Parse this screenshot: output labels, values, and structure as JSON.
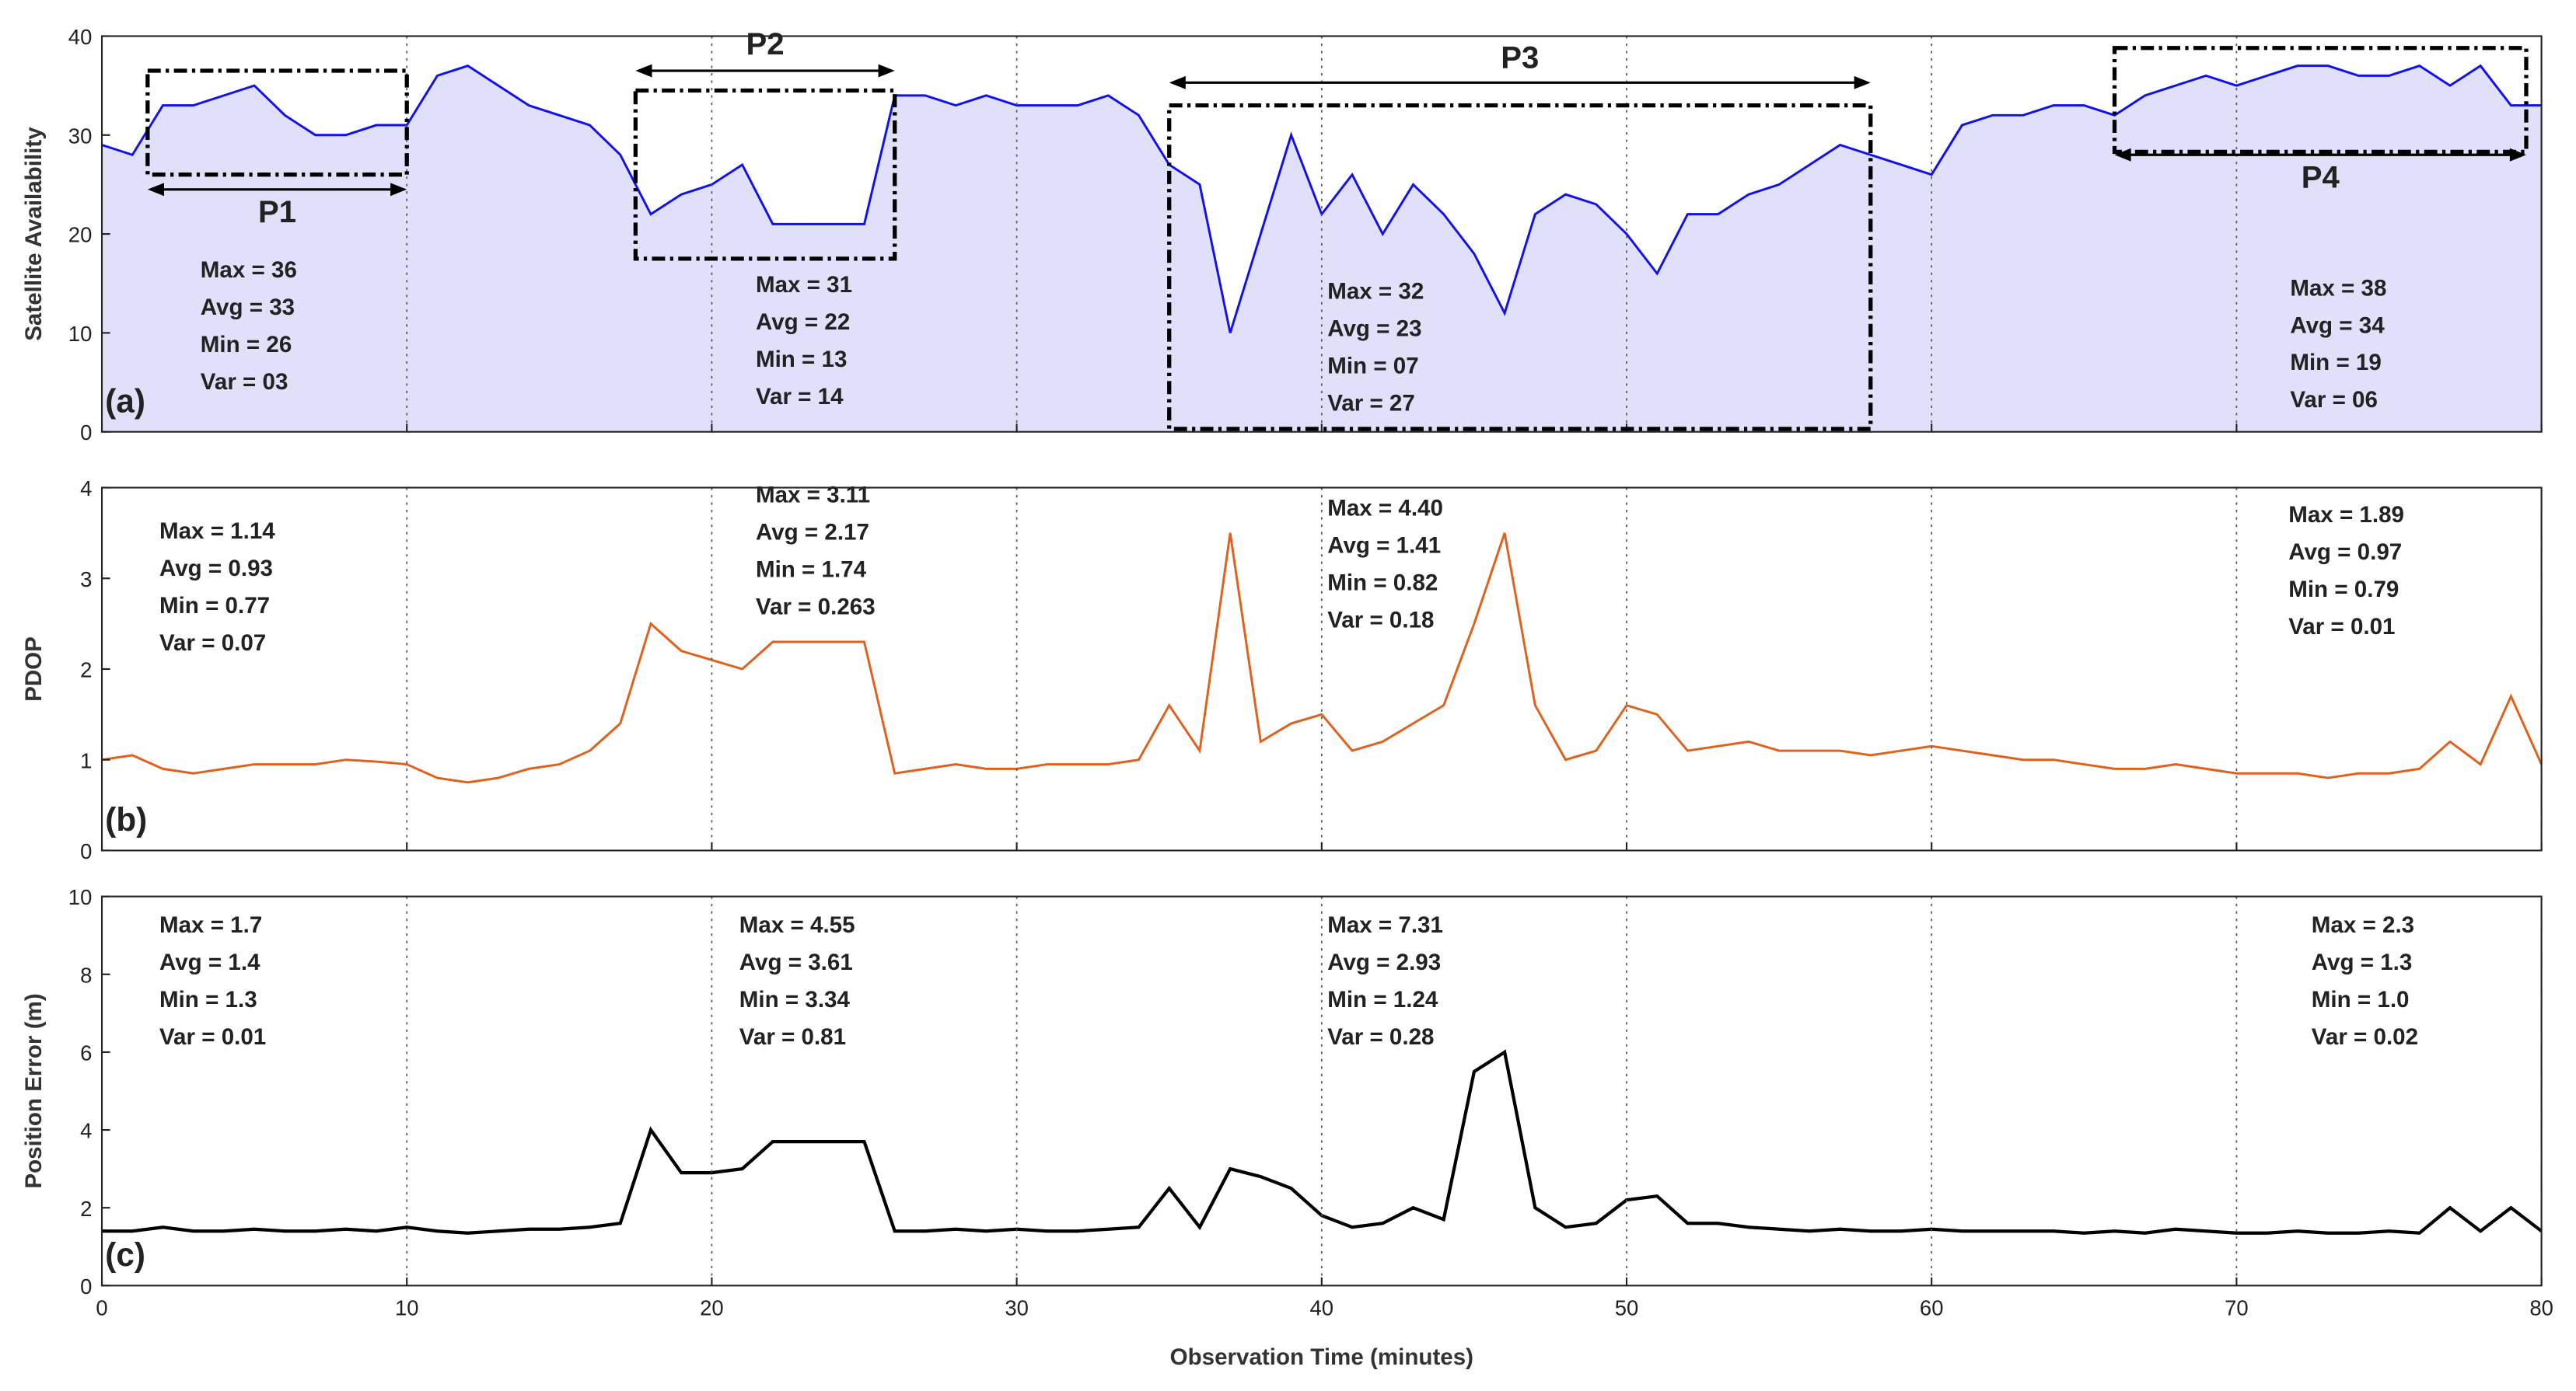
{
  "chart_data": [
    {
      "type": "area",
      "ylabel": "Satellite Availability",
      "panel": "(a)",
      "x": [
        0,
        1,
        2,
        3,
        4,
        5,
        6,
        7,
        8,
        9,
        10,
        11,
        12,
        13,
        14,
        15,
        16,
        17,
        18,
        19,
        20,
        21,
        22,
        23,
        24,
        25,
        26,
        27,
        28,
        29,
        30,
        31,
        32,
        33,
        34,
        35,
        36,
        37,
        38,
        39,
        40,
        41,
        42,
        43,
        44,
        45,
        46,
        47,
        48,
        49,
        50,
        51,
        52,
        53,
        54,
        55,
        56,
        57,
        58,
        59,
        60,
        61,
        62,
        63,
        64,
        65,
        66,
        67,
        68,
        69,
        70,
        71,
        72,
        73,
        74,
        75,
        76,
        77,
        78,
        79,
        80
      ],
      "series": [
        {
          "color": "#1010f0",
          "fill": "#e0e0fa",
          "values": [
            29,
            28,
            33,
            33,
            34,
            35,
            32,
            30,
            30,
            31,
            31,
            36,
            37,
            35,
            33,
            32,
            31,
            28,
            22,
            24,
            25,
            27,
            21,
            21,
            21,
            21,
            34,
            34,
            33,
            34,
            33,
            33,
            33,
            34,
            32,
            27,
            25,
            10,
            20,
            30,
            22,
            26,
            20,
            25,
            22,
            18,
            12,
            22,
            24,
            23,
            20,
            16,
            22,
            22,
            24,
            25,
            27,
            29,
            28,
            27,
            26,
            31,
            32,
            32,
            33,
            33,
            32,
            34,
            35,
            36,
            35,
            36,
            37,
            37,
            36,
            36,
            37,
            35,
            37,
            33,
            33
          ]
        }
      ],
      "xlim": [
        0,
        80
      ],
      "xticks": [
        0,
        10,
        20,
        30,
        40,
        50,
        60,
        70,
        80
      ],
      "ylim": [
        0,
        40
      ],
      "yticks": [
        0,
        10,
        20,
        30,
        40
      ],
      "grid": "x",
      "regions": [
        {
          "label": "P1",
          "x": [
            1.5,
            10
          ]
        },
        {
          "label": "P2",
          "x": [
            17.5,
            26
          ]
        },
        {
          "label": "P3",
          "x": [
            35,
            58
          ]
        },
        {
          "label": "P4",
          "x": [
            66,
            79.5
          ]
        }
      ],
      "stats": [
        [
          "Max = 36",
          "Avg = 33",
          "Min = 26",
          "Var = 03"
        ],
        [
          "Max = 31",
          "Avg = 22",
          "Min = 13",
          "Var = 14"
        ],
        [
          "Max = 32",
          "Avg = 23",
          "Min = 07",
          "Var = 27"
        ],
        [
          "Max = 38",
          "Avg = 34",
          "Min = 19",
          "Var = 06"
        ]
      ]
    },
    {
      "type": "line",
      "ylabel": "PDOP",
      "panel": "(b)",
      "x": [
        0,
        1,
        2,
        3,
        4,
        5,
        6,
        7,
        8,
        9,
        10,
        11,
        12,
        13,
        14,
        15,
        16,
        17,
        18,
        19,
        20,
        21,
        22,
        23,
        24,
        25,
        26,
        27,
        28,
        29,
        30,
        31,
        32,
        33,
        34,
        35,
        36,
        37,
        38,
        39,
        40,
        41,
        42,
        43,
        44,
        45,
        46,
        47,
        48,
        49,
        50,
        51,
        52,
        53,
        54,
        55,
        56,
        57,
        58,
        59,
        60,
        61,
        62,
        63,
        64,
        65,
        66,
        67,
        68,
        69,
        70,
        71,
        72,
        73,
        74,
        75,
        76,
        77,
        78,
        79,
        80
      ],
      "series": [
        {
          "color": "#e0601c",
          "values": [
            1.0,
            1.05,
            0.9,
            0.85,
            0.9,
            0.95,
            0.95,
            0.95,
            1.0,
            0.98,
            0.95,
            0.8,
            0.75,
            0.8,
            0.9,
            0.95,
            1.1,
            1.4,
            2.5,
            2.2,
            2.1,
            2.0,
            2.3,
            2.3,
            2.3,
            2.3,
            0.85,
            0.9,
            0.95,
            0.9,
            0.9,
            0.95,
            0.95,
            0.95,
            1.0,
            1.6,
            1.1,
            3.5,
            1.2,
            1.4,
            1.5,
            1.1,
            1.2,
            1.4,
            1.6,
            2.5,
            3.5,
            1.6,
            1.0,
            1.1,
            1.6,
            1.5,
            1.1,
            1.15,
            1.2,
            1.1,
            1.1,
            1.1,
            1.05,
            1.1,
            1.15,
            1.1,
            1.05,
            1.0,
            1.0,
            0.95,
            0.9,
            0.9,
            0.95,
            0.9,
            0.85,
            0.85,
            0.85,
            0.8,
            0.85,
            0.85,
            0.9,
            1.2,
            0.95,
            1.7,
            0.95
          ]
        }
      ],
      "xlim": [
        0,
        80
      ],
      "xticks": [
        0,
        10,
        20,
        30,
        40,
        50,
        60,
        70,
        80
      ],
      "ylim": [
        0,
        4
      ],
      "yticks": [
        0,
        1,
        2,
        3,
        4
      ],
      "grid": "x",
      "stats": [
        [
          "Max = 1.14",
          "Avg = 0.93",
          "Min = 0.77",
          "Var = 0.07"
        ],
        [
          "Max = 3.11",
          "Avg = 2.17",
          "Min = 1.74",
          "Var = 0.263"
        ],
        [
          "Max = 4.40",
          "Avg = 1.41",
          "Min = 0.82",
          "Var = 0.18"
        ],
        [
          "Max = 1.89",
          "Avg = 0.97",
          "Min = 0.79",
          "Var = 0.01"
        ]
      ]
    },
    {
      "type": "line",
      "ylabel": "Position Error (m)",
      "panel": "(c)",
      "xlabel": "Observation Time (minutes)",
      "x": [
        0,
        1,
        2,
        3,
        4,
        5,
        6,
        7,
        8,
        9,
        10,
        11,
        12,
        13,
        14,
        15,
        16,
        17,
        18,
        19,
        20,
        21,
        22,
        23,
        24,
        25,
        26,
        27,
        28,
        29,
        30,
        31,
        32,
        33,
        34,
        35,
        36,
        37,
        38,
        39,
        40,
        41,
        42,
        43,
        44,
        45,
        46,
        47,
        48,
        49,
        50,
        51,
        52,
        53,
        54,
        55,
        56,
        57,
        58,
        59,
        60,
        61,
        62,
        63,
        64,
        65,
        66,
        67,
        68,
        69,
        70,
        71,
        72,
        73,
        74,
        75,
        76,
        77,
        78,
        79,
        80
      ],
      "series": [
        {
          "color": "#000000",
          "values": [
            1.4,
            1.4,
            1.5,
            1.4,
            1.4,
            1.45,
            1.4,
            1.4,
            1.45,
            1.4,
            1.5,
            1.4,
            1.35,
            1.4,
            1.45,
            1.45,
            1.5,
            1.6,
            4.0,
            2.9,
            2.9,
            3.0,
            3.7,
            3.7,
            3.7,
            3.7,
            1.4,
            1.4,
            1.45,
            1.4,
            1.45,
            1.4,
            1.4,
            1.45,
            1.5,
            2.5,
            1.5,
            3.0,
            2.8,
            2.5,
            1.8,
            1.5,
            1.6,
            2.0,
            1.7,
            5.5,
            6.0,
            2.0,
            1.5,
            1.6,
            2.2,
            2.3,
            1.6,
            1.6,
            1.5,
            1.45,
            1.4,
            1.45,
            1.4,
            1.4,
            1.45,
            1.4,
            1.4,
            1.4,
            1.4,
            1.35,
            1.4,
            1.35,
            1.45,
            1.4,
            1.35,
            1.35,
            1.4,
            1.35,
            1.35,
            1.4,
            1.35,
            2.0,
            1.4,
            2.0,
            1.4
          ]
        }
      ],
      "xlim": [
        0,
        80
      ],
      "xticks": [
        0,
        10,
        20,
        30,
        40,
        50,
        60,
        70,
        80
      ],
      "ylim": [
        0,
        10
      ],
      "yticks": [
        0,
        2,
        4,
        6,
        8,
        10
      ],
      "grid": "x",
      "stats": [
        [
          "Max = 1.7",
          "Avg = 1.4",
          "Min = 1.3",
          "Var = 0.01"
        ],
        [
          "Max = 4.55",
          "Avg = 3.61",
          "Min = 3.34",
          "Var = 0.81"
        ],
        [
          "Max = 7.31",
          "Avg = 2.93",
          "Min = 1.24",
          "Var = 0.28"
        ],
        [
          "Max = 2.3",
          "Avg = 1.3",
          "Min = 1.0",
          "Var = 0.02"
        ]
      ]
    }
  ]
}
